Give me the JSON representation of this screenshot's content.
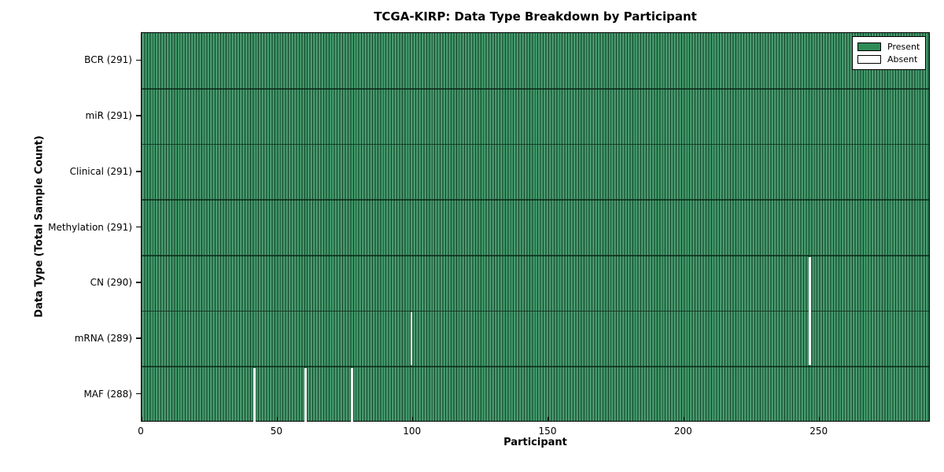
{
  "chart_data": {
    "type": "heatmap",
    "title": "TCGA-KIRP: Data Type Breakdown by Participant",
    "xlabel": "Participant",
    "ylabel": "Data Type (Total Sample Count)",
    "xlim": [
      0,
      291
    ],
    "x_ticks": [
      0,
      50,
      100,
      150,
      200,
      250
    ],
    "n_participants": 291,
    "grid": false,
    "rows": [
      {
        "label": "BCR (291)",
        "name": "BCR",
        "count": 291,
        "absent_participants": []
      },
      {
        "label": "miR (291)",
        "name": "miR",
        "count": 291,
        "absent_participants": []
      },
      {
        "label": "Clinical (291)",
        "name": "Clinical",
        "count": 291,
        "absent_participants": []
      },
      {
        "label": "Methylation (291)",
        "name": "Methylation",
        "count": 291,
        "absent_participants": []
      },
      {
        "label": "CN (290)",
        "name": "CN",
        "count": 290,
        "absent_participants": [
          246
        ]
      },
      {
        "label": "mRNA (289)",
        "name": "mRNA",
        "count": 289,
        "absent_participants": [
          99,
          246
        ]
      },
      {
        "label": "MAF (288)",
        "name": "MAF",
        "count": 288,
        "absent_participants": [
          41,
          60,
          77
        ]
      }
    ],
    "legend": {
      "position": "upper right",
      "entries": [
        {
          "label": "Present",
          "color": "#2e8b57"
        },
        {
          "label": "Absent",
          "color": "#ffffff"
        }
      ]
    },
    "colors": {
      "present": "#2e8b57",
      "absent": "#ffffff",
      "bar_edge": "#0a2214",
      "spine": "#000000",
      "background": "#ffffff"
    }
  }
}
